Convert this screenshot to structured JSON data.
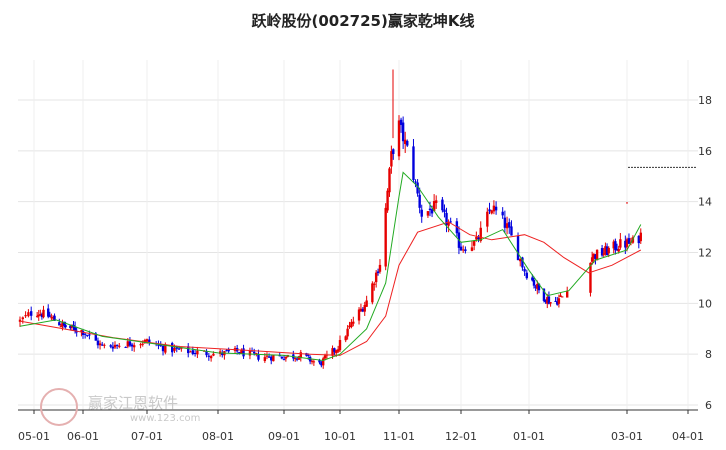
{
  "chart_data": {
    "type": "candlestick",
    "title": "跃岭股份(002725)赢家乾坤K线",
    "ylim": [
      5.8,
      20.0
    ],
    "y_ticks": [
      "6",
      "8",
      "10",
      "12",
      "14",
      "16",
      "18"
    ],
    "x_ticks": [
      "05-01",
      "06-01",
      "07-01",
      "08-01",
      "09-01",
      "10-01",
      "11-01",
      "12-01",
      "01-01",
      "03-01",
      "04-01"
    ],
    "grid": true,
    "y_axis_side": "right",
    "up_color": "#e60000",
    "down_color": "#0000dd",
    "line_colors": {
      "short_ma": "#22aa22",
      "long_ma": "#ee2222"
    },
    "price_series": [
      {
        "date": "04-26",
        "close": 9.3
      },
      {
        "date": "05-01",
        "close": 9.7
      },
      {
        "date": "05-10",
        "close": 9.5
      },
      {
        "date": "05-20",
        "close": 9.1
      },
      {
        "date": "06-01",
        "close": 8.9
      },
      {
        "date": "06-10",
        "close": 8.3
      },
      {
        "date": "06-20",
        "close": 8.4
      },
      {
        "date": "07-01",
        "close": 8.5
      },
      {
        "date": "07-10",
        "close": 8.2
      },
      {
        "date": "07-20",
        "close": 8.1
      },
      {
        "date": "08-01",
        "close": 8.0
      },
      {
        "date": "08-10",
        "close": 8.1
      },
      {
        "date": "08-20",
        "close": 7.9
      },
      {
        "date": "09-01",
        "close": 7.9
      },
      {
        "date": "09-10",
        "close": 7.95
      },
      {
        "date": "09-20",
        "close": 7.6
      },
      {
        "date": "09-30",
        "close": 8.3
      },
      {
        "date": "10-08",
        "close": 9.3
      },
      {
        "date": "10-15",
        "close": 10.1
      },
      {
        "date": "10-22",
        "close": 11.6
      },
      {
        "date": "10-28",
        "close": 15.8
      },
      {
        "date": "11-01",
        "close": 17.0
      },
      {
        "date": "11-06",
        "close": 15.8
      },
      {
        "date": "11-12",
        "close": 13.5
      },
      {
        "date": "11-19",
        "close": 13.8
      },
      {
        "date": "11-26",
        "close": 13.0
      },
      {
        "date": "12-01",
        "close": 12.2
      },
      {
        "date": "12-08",
        "close": 12.4
      },
      {
        "date": "12-15",
        "close": 13.8
      },
      {
        "date": "12-22",
        "close": 13.0
      },
      {
        "date": "12-30",
        "close": 11.3
      },
      {
        "date": "01-08",
        "close": 10.4
      },
      {
        "date": "01-15",
        "close": 10.0
      },
      {
        "date": "01-22",
        "close": 10.3
      },
      {
        "date": "02-06",
        "close": 11.8
      },
      {
        "date": "02-15",
        "close": 12.0
      },
      {
        "date": "02-24",
        "close": 12.3
      },
      {
        "date": "03-05",
        "close": 12.4
      },
      {
        "date": "03-08",
        "close": 12.7
      }
    ],
    "short_ma": [
      {
        "date": "04-26",
        "value": 9.1
      },
      {
        "date": "05-15",
        "value": 9.35
      },
      {
        "date": "06-10",
        "value": 8.7
      },
      {
        "date": "07-01",
        "value": 8.45
      },
      {
        "date": "08-01",
        "value": 8.05
      },
      {
        "date": "09-01",
        "value": 7.95
      },
      {
        "date": "09-22",
        "value": 7.75
      },
      {
        "date": "10-01",
        "value": 8.0
      },
      {
        "date": "10-15",
        "value": 9.0
      },
      {
        "date": "10-25",
        "value": 10.8
      },
      {
        "date": "11-01",
        "value": 14.2
      },
      {
        "date": "11-03",
        "value": 15.15
      },
      {
        "date": "11-10",
        "value": 14.6
      },
      {
        "date": "11-20",
        "value": 13.4
      },
      {
        "date": "12-01",
        "value": 12.4
      },
      {
        "date": "12-10",
        "value": 12.5
      },
      {
        "date": "12-20",
        "value": 12.9
      },
      {
        "date": "01-01",
        "value": 11.3
      },
      {
        "date": "01-12",
        "value": 10.3
      },
      {
        "date": "01-25",
        "value": 10.5
      },
      {
        "date": "02-10",
        "value": 11.7
      },
      {
        "date": "03-01",
        "value": 12.1
      },
      {
        "date": "03-08",
        "value": 13.1
      }
    ],
    "long_ma": [
      {
        "date": "04-26",
        "value": 9.3
      },
      {
        "date": "05-15",
        "value": 9.05
      },
      {
        "date": "06-15",
        "value": 8.65
      },
      {
        "date": "07-15",
        "value": 8.3
      },
      {
        "date": "08-15",
        "value": 8.15
      },
      {
        "date": "09-15",
        "value": 8.0
      },
      {
        "date": "10-01",
        "value": 7.95
      },
      {
        "date": "10-15",
        "value": 8.5
      },
      {
        "date": "10-25",
        "value": 9.5
      },
      {
        "date": "11-01",
        "value": 11.5
      },
      {
        "date": "11-10",
        "value": 12.8
      },
      {
        "date": "11-25",
        "value": 13.2
      },
      {
        "date": "12-05",
        "value": 12.7
      },
      {
        "date": "12-15",
        "value": 12.5
      },
      {
        "date": "12-30",
        "value": 12.7
      },
      {
        "date": "01-10",
        "value": 12.4
      },
      {
        "date": "01-22",
        "value": 11.8
      },
      {
        "date": "02-06",
        "value": 11.2
      },
      {
        "date": "02-20",
        "value": 11.5
      },
      {
        "date": "03-08",
        "value": 12.1
      }
    ]
  },
  "watermark": {
    "brand": "赢家江恩软件",
    "seal": "赢家 财富",
    "url": "www.123.com"
  }
}
